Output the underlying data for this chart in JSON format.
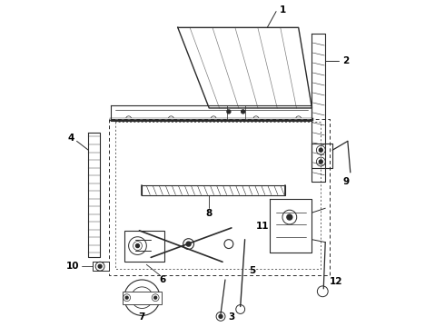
{
  "bg_color": "#ffffff",
  "lc": "#2a2a2a",
  "label_color": "#000000",
  "figsize": [
    4.9,
    3.6
  ],
  "dpi": 100
}
